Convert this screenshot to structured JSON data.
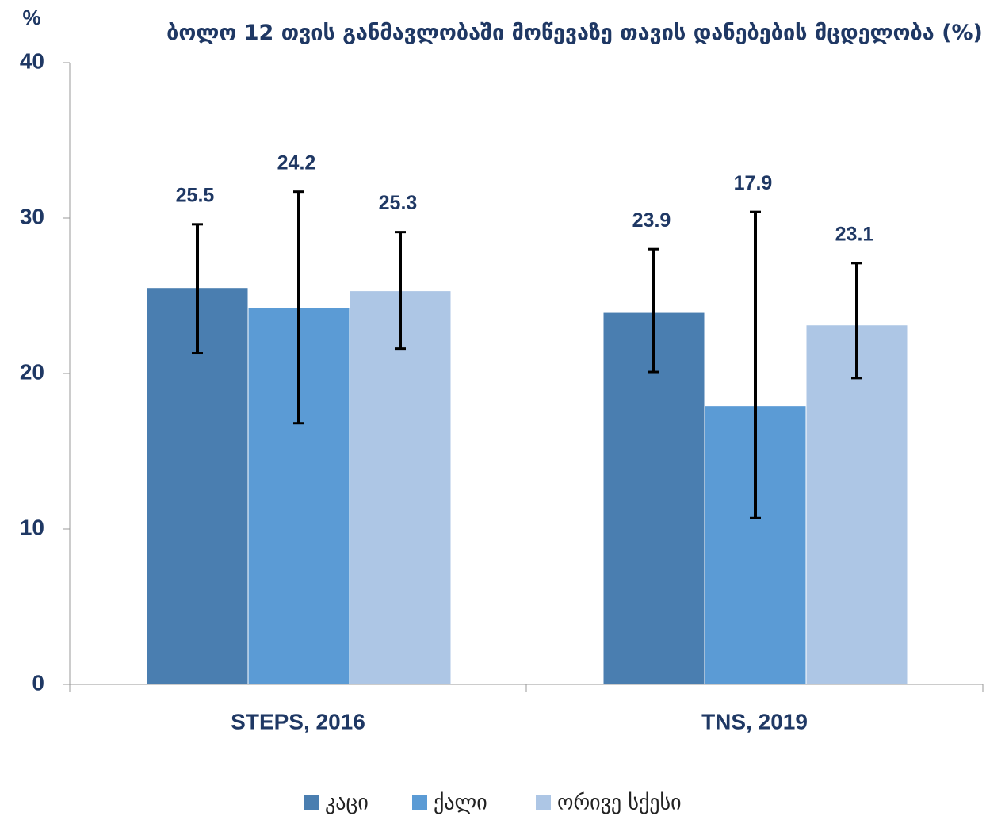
{
  "chart_data": {
    "type": "bar",
    "title": "ბოლო 12 თვის განმავლობაში მოწევაზე თავის დანებების მცდელობა (%)",
    "y_label": "%",
    "categories": [
      "STEPS, 2016",
      "TNS, 2019"
    ],
    "series": [
      {
        "name": "კაცი",
        "color": "#4a7eb0",
        "values": [
          25.5,
          23.9
        ],
        "ci": [
          [
            21.3,
            29.6
          ],
          [
            20.1,
            28.0
          ]
        ]
      },
      {
        "name": "ქალი",
        "color": "#5b9bd5",
        "values": [
          24.2,
          17.9
        ],
        "ci": [
          [
            16.8,
            31.7
          ],
          [
            10.7,
            30.4
          ]
        ]
      },
      {
        "name": "ორივე სქესი",
        "color": "#adc6e5",
        "values": [
          25.3,
          23.1
        ],
        "ci": [
          [
            21.6,
            29.1
          ],
          [
            19.7,
            27.1
          ]
        ]
      }
    ],
    "ylim": [
      0,
      40
    ],
    "yticks": [
      0,
      10,
      20,
      30,
      40
    ],
    "grid": false,
    "legend": "bottom"
  }
}
